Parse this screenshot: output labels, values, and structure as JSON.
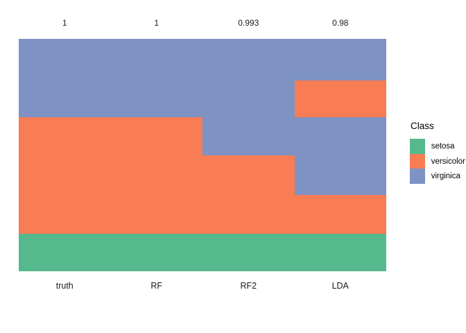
{
  "figure": {
    "background": "#ffffff",
    "text_color": "#1a1a1a"
  },
  "chart_data": {
    "type": "bar",
    "subtype": "stacked-class-composition-columns",
    "title": "",
    "xlabel": "",
    "ylabel": "",
    "grid": false,
    "axes_visible": false,
    "legend_position": "right",
    "categories": [
      "truth",
      "RF",
      "RF2",
      "LDA"
    ],
    "top_value_labels": [
      "1",
      "1",
      "0.993",
      "0.98"
    ],
    "classes": [
      "setosa",
      "versicolor",
      "virginica"
    ],
    "palette": {
      "setosa": "#56B98D",
      "versicolor": "#F87C54",
      "virginica": "#7F92C4"
    },
    "columns": [
      {
        "label": "truth",
        "top_value": "1",
        "segments_top_to_bottom": [
          {
            "class": "virginica",
            "fraction": 0.3373
          },
          {
            "class": "versicolor",
            "fraction": 0.5015
          },
          {
            "class": "setosa",
            "fraction": 0.1612
          }
        ]
      },
      {
        "label": "RF",
        "top_value": "1",
        "segments_top_to_bottom": [
          {
            "class": "virginica",
            "fraction": 0.3373
          },
          {
            "class": "versicolor",
            "fraction": 0.5015
          },
          {
            "class": "setosa",
            "fraction": 0.1612
          }
        ]
      },
      {
        "label": "RF2",
        "top_value": "0.993",
        "segments_top_to_bottom": [
          {
            "class": "virginica",
            "fraction": 0.5015
          },
          {
            "class": "versicolor",
            "fraction": 0.3373
          },
          {
            "class": "setosa",
            "fraction": 0.1612
          }
        ]
      },
      {
        "label": "LDA",
        "top_value": "0.98",
        "segments_top_to_bottom": [
          {
            "class": "virginica",
            "fraction": 0.1791
          },
          {
            "class": "versicolor",
            "fraction": 0.1582
          },
          {
            "class": "virginica",
            "fraction": 0.3343
          },
          {
            "class": "versicolor",
            "fraction": 0.1672
          },
          {
            "class": "setosa",
            "fraction": 0.1612
          }
        ]
      }
    ]
  },
  "legend": {
    "title": "Class",
    "items": [
      {
        "label": "setosa",
        "color": "#56B98D"
      },
      {
        "label": "versicolor",
        "color": "#F87C54"
      },
      {
        "label": "virginica",
        "color": "#7F92C4"
      }
    ]
  }
}
